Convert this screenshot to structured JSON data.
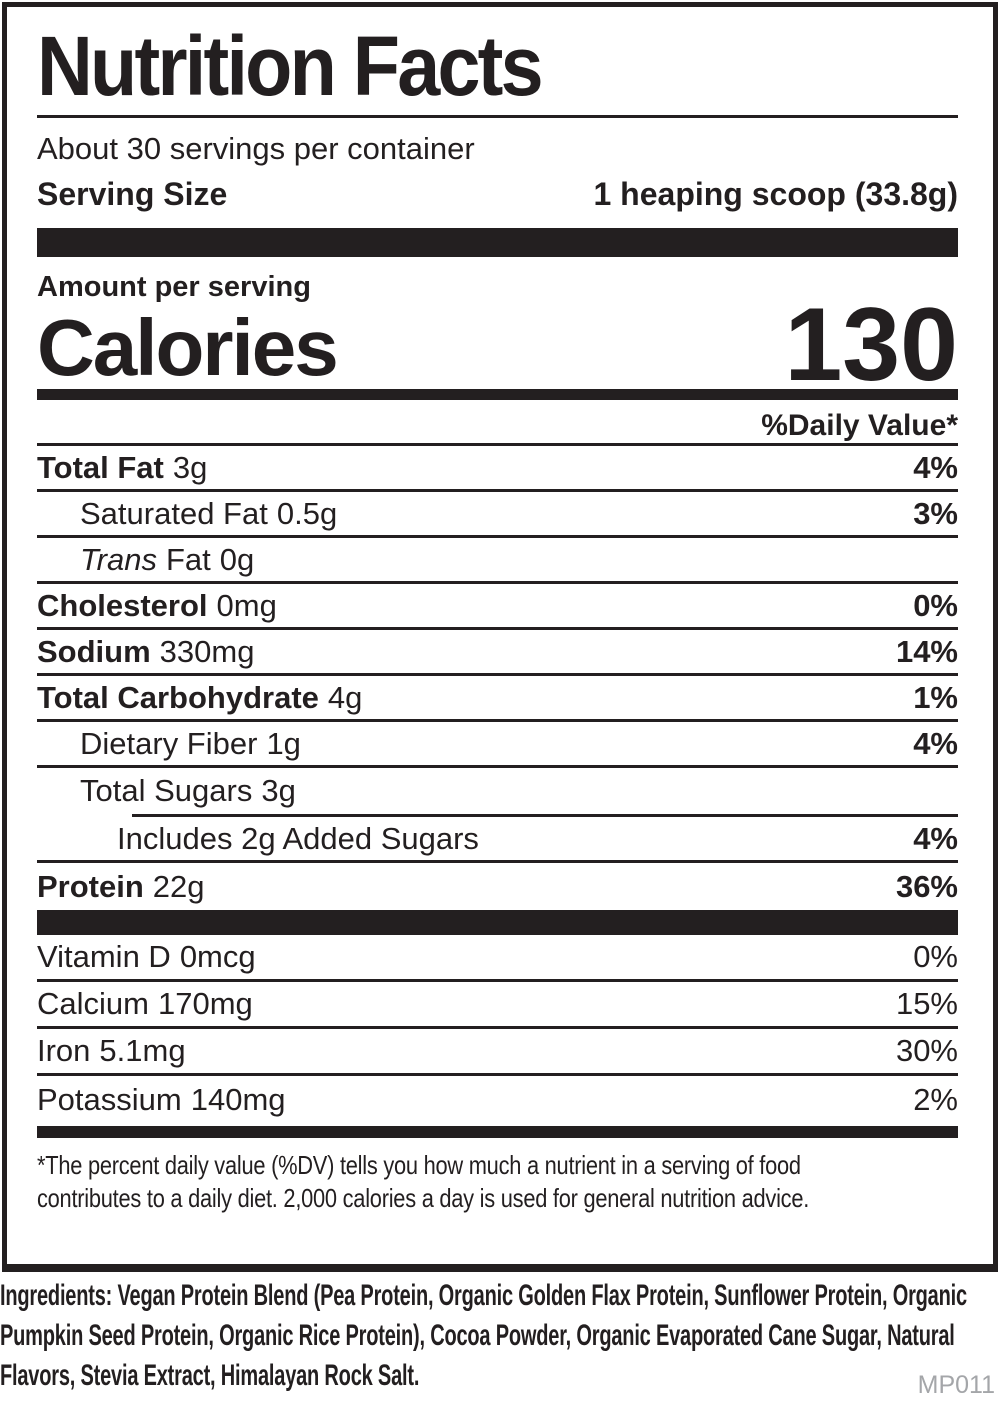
{
  "colors": {
    "ink": "#231f20",
    "code_gray": "#a4a6a9"
  },
  "label": {
    "title": "Nutrition Facts",
    "servings_per_container": "About 30 servings per container",
    "serving_size": {
      "label": "Serving Size",
      "value": "1 heaping scoop (33.8g)"
    },
    "amount_per_serving": "Amount per serving",
    "calories": {
      "label": "Calories",
      "value": "130"
    },
    "daily_value_header": "%Daily Value*",
    "nutrients": [
      {
        "name": "Total Fat",
        "amount": "3g",
        "dv": "4%"
      },
      {
        "name": "Saturated Fat",
        "amount": "0.5g",
        "dv": "3%"
      },
      {
        "name_italic": "Trans",
        "name": "Fat",
        "amount": "0g",
        "dv": ""
      },
      {
        "name": "Cholesterol",
        "amount": "0mg",
        "dv": "0%"
      },
      {
        "name": "Sodium",
        "amount": "330mg",
        "dv": "14%"
      },
      {
        "name": "Total Carbohydrate",
        "amount": "4g",
        "dv": "1%"
      },
      {
        "name": "Dietary Fiber",
        "amount": "1g",
        "dv": "4%"
      },
      {
        "name": "Total Sugars",
        "amount": "3g",
        "dv": ""
      },
      {
        "name": "Includes 2g Added Sugars",
        "amount": "",
        "dv": "4%"
      },
      {
        "name": "Protein",
        "amount": "22g",
        "dv": "36%"
      }
    ],
    "vitamins": [
      {
        "name": "Vitamin D",
        "amount": "0mcg",
        "dv": "0%"
      },
      {
        "name": "Calcium",
        "amount": "170mg",
        "dv": "15%"
      },
      {
        "name": "Iron",
        "amount": "5.1mg",
        "dv": "30%"
      },
      {
        "name": "Potassium",
        "amount": "140mg",
        "dv": "2%"
      }
    ],
    "footnote_lines": [
      "*The percent daily value (%DV) tells you how much a nutrient in a serving of food",
      "contributes to a daily diet. 2,000 calories a day is used for general nutrition advice."
    ]
  },
  "ingredients": "Ingredients: Vegan Protein Blend (Pea Protein, Organic Golden Flax Protein, Sunflower Protein, Organic Pumpkin Seed Protein, Organic Rice Protein), Cocoa Powder, Organic Evaporated Cane Sugar, Natural Flavors, Stevia Extract, Himalayan Rock Salt.",
  "product_code": "MP011"
}
